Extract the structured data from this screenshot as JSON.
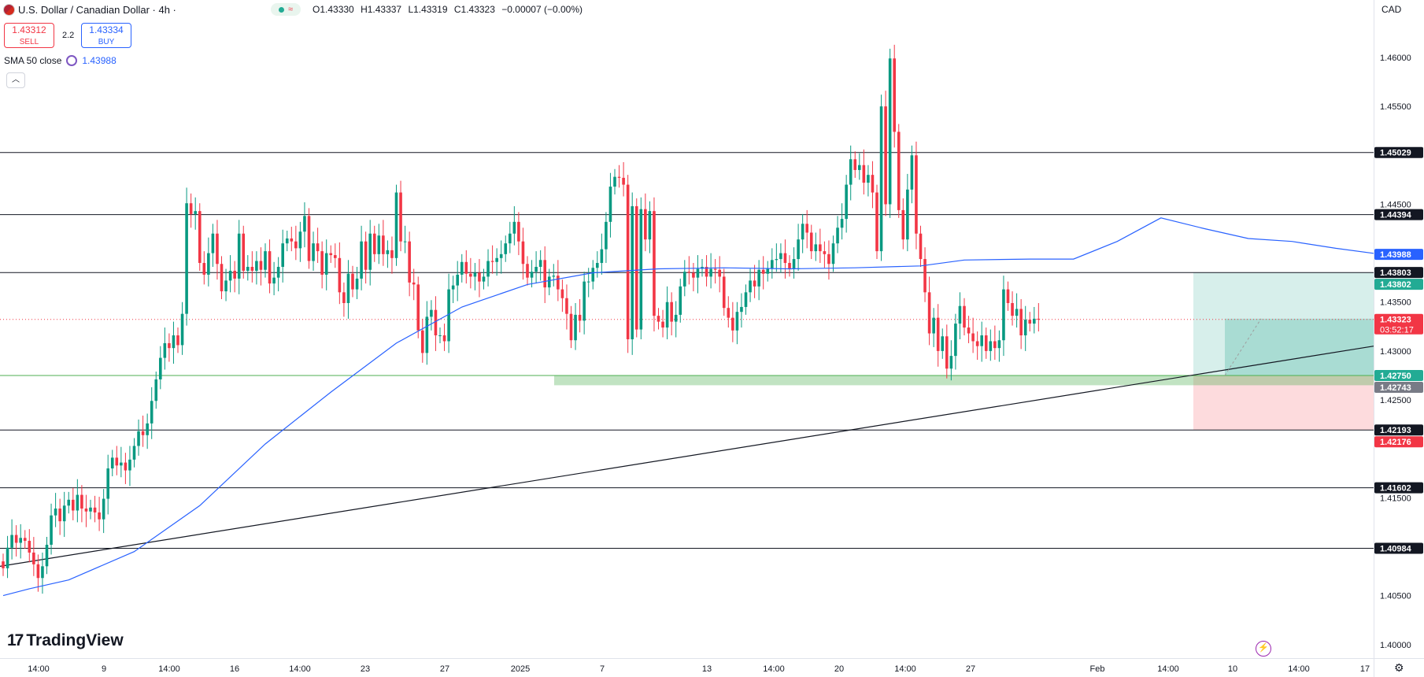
{
  "header": {
    "symbol_title": "U.S. Dollar / Canadian Dollar · 4h ·",
    "ohlc": {
      "open": "O1.43330",
      "high": "H1.43337",
      "low": "L1.43319",
      "close": "C1.43323",
      "change": "−0.00007 (−0.00%)"
    },
    "sell": {
      "price": "1.43312",
      "label": "SELL"
    },
    "buy": {
      "price": "1.43334",
      "label": "BUY"
    },
    "spread": "2.2",
    "indicator": {
      "label": "SMA 50 close",
      "value": "1.43988"
    },
    "currency": "CAD",
    "colors": {
      "up": "#089981",
      "down": "#f23645",
      "sma": "#2962ff"
    }
  },
  "branding": {
    "logo": "TradingView"
  },
  "icons": {
    "flag": "us-ca-flag-icon",
    "collapse": "chevron-up-icon",
    "bolt": "lightning-icon",
    "settings": "gear-icon"
  },
  "chart_data": {
    "type": "candlestick",
    "symbol": "USDCAD",
    "timeframe": "4h",
    "ylim": [
      1.3995,
      1.4655
    ],
    "y_ticks": [
      "1.46000",
      "1.45500",
      "1.44500",
      "1.43500",
      "1.43000",
      "1.42500",
      "1.41500",
      "1.40500",
      "1.40000"
    ],
    "x_ticks": [
      "14:00",
      "9",
      "14:00",
      "16",
      "14:00",
      "23",
      "27",
      "2025",
      "7",
      "13",
      "14:00",
      "20",
      "14:00",
      "27",
      "Feb",
      "14:00",
      "10",
      "14:00",
      "17"
    ],
    "candles": [
      [
        1.4085,
        1.4078
      ],
      [
        1.4078,
        1.4099
      ],
      [
        1.4099,
        1.4112
      ],
      [
        1.4112,
        1.4104
      ],
      [
        1.4104,
        1.4109
      ],
      [
        1.4109,
        1.4106
      ],
      [
        1.4106,
        1.4094
      ],
      [
        1.4094,
        1.4082
      ],
      [
        1.4082,
        1.4068
      ],
      [
        1.4068,
        1.408
      ],
      [
        1.408,
        1.4102
      ],
      [
        1.4102,
        1.4132
      ],
      [
        1.4132,
        1.4139
      ],
      [
        1.4139,
        1.4126
      ],
      [
        1.4126,
        1.4142
      ],
      [
        1.4142,
        1.4148
      ],
      [
        1.4148,
        1.4137
      ],
      [
        1.4137,
        1.4153
      ],
      [
        1.4153,
        1.4139
      ],
      [
        1.4139,
        1.4136
      ],
      [
        1.4136,
        1.414
      ],
      [
        1.414,
        1.4135
      ],
      [
        1.4135,
        1.4128
      ],
      [
        1.4128,
        1.4149
      ],
      [
        1.4149,
        1.418
      ],
      [
        1.418,
        1.4191
      ],
      [
        1.4191,
        1.4183
      ],
      [
        1.4183,
        1.4186
      ],
      [
        1.4186,
        1.4178
      ],
      [
        1.4178,
        1.4189
      ],
      [
        1.4189,
        1.4203
      ],
      [
        1.4203,
        1.4218
      ],
      [
        1.4218,
        1.4214
      ],
      [
        1.4214,
        1.4226
      ],
      [
        1.4226,
        1.4249
      ],
      [
        1.4249,
        1.4271
      ],
      [
        1.4271,
        1.4293
      ],
      [
        1.4293,
        1.4308
      ],
      [
        1.4308,
        1.4303
      ],
      [
        1.4303,
        1.4316
      ],
      [
        1.4316,
        1.4306
      ],
      [
        1.4306,
        1.4338
      ],
      [
        1.4338,
        1.4451
      ],
      [
        1.4451,
        1.444
      ],
      [
        1.444,
        1.4443
      ],
      [
        1.4443,
        1.439
      ],
      [
        1.439,
        1.4378
      ],
      [
        1.4378,
        1.44
      ],
      [
        1.44,
        1.442
      ],
      [
        1.442,
        1.4389
      ],
      [
        1.4389,
        1.4361
      ],
      [
        1.4361,
        1.4372
      ],
      [
        1.4372,
        1.4382
      ],
      [
        1.4382,
        1.4374
      ],
      [
        1.4374,
        1.442
      ],
      [
        1.442,
        1.4382
      ],
      [
        1.4382,
        1.4386
      ],
      [
        1.4386,
        1.4382
      ],
      [
        1.4382,
        1.4392
      ],
      [
        1.4392,
        1.4383
      ],
      [
        1.4383,
        1.4402
      ],
      [
        1.4402,
        1.4369
      ],
      [
        1.4369,
        1.4375
      ],
      [
        1.4375,
        1.4386
      ],
      [
        1.4386,
        1.441
      ],
      [
        1.441,
        1.4415
      ],
      [
        1.4415,
        1.4412
      ],
      [
        1.4412,
        1.4405
      ],
      [
        1.4405,
        1.4422
      ],
      [
        1.4422,
        1.4438
      ],
      [
        1.4438,
        1.4392
      ],
      [
        1.4392,
        1.441
      ],
      [
        1.441,
        1.4402
      ],
      [
        1.4402,
        1.4378
      ],
      [
        1.4378,
        1.44
      ],
      [
        1.44,
        1.4398
      ],
      [
        1.4398,
        1.4395
      ],
      [
        1.4395,
        1.436
      ],
      [
        1.436,
        1.4349
      ],
      [
        1.4349,
        1.4379
      ],
      [
        1.4379,
        1.4363
      ],
      [
        1.4363,
        1.4374
      ],
      [
        1.4374,
        1.4412
      ],
      [
        1.4412,
        1.4383
      ],
      [
        1.4383,
        1.442
      ],
      [
        1.442,
        1.4399
      ],
      [
        1.4399,
        1.4418
      ],
      [
        1.4418,
        1.4399
      ],
      [
        1.4399,
        1.4403
      ],
      [
        1.4403,
        1.4395
      ],
      [
        1.4395,
        1.4462
      ],
      [
        1.4462,
        1.4412
      ],
      [
        1.4412,
        1.4412
      ],
      [
        1.4412,
        1.437
      ],
      [
        1.437,
        1.4368
      ],
      [
        1.4368,
        1.4321
      ],
      [
        1.4321,
        1.4298
      ],
      [
        1.4298,
        1.4335
      ],
      [
        1.4335,
        1.4342
      ],
      [
        1.4342,
        1.4316
      ],
      [
        1.4316,
        1.4316
      ],
      [
        1.4316,
        1.431
      ],
      [
        1.431,
        1.4363
      ],
      [
        1.4363,
        1.4367
      ],
      [
        1.4367,
        1.4378
      ],
      [
        1.4378,
        1.4391
      ],
      [
        1.4391,
        1.4379
      ],
      [
        1.4379,
        1.4376
      ],
      [
        1.4376,
        1.438
      ],
      [
        1.438,
        1.4371
      ],
      [
        1.4371,
        1.4376
      ],
      [
        1.4376,
        1.4392
      ],
      [
        1.4392,
        1.4391
      ],
      [
        1.4391,
        1.4395
      ],
      [
        1.4395,
        1.4399
      ],
      [
        1.4399,
        1.441
      ],
      [
        1.441,
        1.442
      ],
      [
        1.442,
        1.4432
      ],
      [
        1.4432,
        1.4412
      ],
      [
        1.4412,
        1.4389
      ],
      [
        1.4389,
        1.4375
      ],
      [
        1.4375,
        1.4381
      ],
      [
        1.4381,
        1.4386
      ],
      [
        1.4386,
        1.4393
      ],
      [
        1.4393,
        1.4365
      ],
      [
        1.4365,
        1.4376
      ],
      [
        1.4376,
        1.4377
      ],
      [
        1.4377,
        1.4363
      ],
      [
        1.4363,
        1.4354
      ],
      [
        1.4354,
        1.4338
      ],
      [
        1.4338,
        1.4311
      ],
      [
        1.4311,
        1.4337
      ],
      [
        1.4337,
        1.4331
      ],
      [
        1.4331,
        1.4371
      ],
      [
        1.4371,
        1.4371
      ],
      [
        1.4371,
        1.4385
      ],
      [
        1.4385,
        1.439
      ],
      [
        1.439,
        1.4404
      ],
      [
        1.4404,
        1.4432
      ],
      [
        1.4432,
        1.4468
      ],
      [
        1.4468,
        1.4478
      ],
      [
        1.4478,
        1.4477
      ],
      [
        1.4477,
        1.447
      ],
      [
        1.447,
        1.4312
      ],
      [
        1.4312,
        1.4448
      ],
      [
        1.4448,
        1.4322
      ],
      [
        1.4322,
        1.4445
      ],
      [
        1.4445,
        1.4414
      ],
      [
        1.4414,
        1.4443
      ],
      [
        1.4443,
        1.4336
      ],
      [
        1.4336,
        1.433
      ],
      [
        1.433,
        1.4324
      ],
      [
        1.4324,
        1.435
      ],
      [
        1.435,
        1.433
      ],
      [
        1.433,
        1.4337
      ],
      [
        1.4337,
        1.4366
      ],
      [
        1.4366,
        1.4381
      ],
      [
        1.4381,
        1.438
      ],
      [
        1.438,
        1.4375
      ],
      [
        1.4375,
        1.4384
      ],
      [
        1.4384,
        1.4386
      ],
      [
        1.4386,
        1.4376
      ],
      [
        1.4376,
        1.4384
      ],
      [
        1.4384,
        1.4383
      ],
      [
        1.4383,
        1.4376
      ],
      [
        1.4376,
        1.4344
      ],
      [
        1.4344,
        1.4334
      ],
      [
        1.4334,
        1.4321
      ],
      [
        1.4321,
        1.434
      ],
      [
        1.434,
        1.4345
      ],
      [
        1.4345,
        1.436
      ],
      [
        1.436,
        1.4372
      ],
      [
        1.4372,
        1.4366
      ],
      [
        1.4366,
        1.4383
      ],
      [
        1.4383,
        1.4379
      ],
      [
        1.4379,
        1.4384
      ],
      [
        1.4384,
        1.4393
      ],
      [
        1.4393,
        1.4394
      ],
      [
        1.4394,
        1.44
      ],
      [
        1.44,
        1.439
      ],
      [
        1.439,
        1.4384
      ],
      [
        1.4384,
        1.4394
      ],
      [
        1.4394,
        1.4414
      ],
      [
        1.4414,
        1.443
      ],
      [
        1.443,
        1.4421
      ],
      [
        1.4421,
        1.4402
      ],
      [
        1.4402,
        1.4409
      ],
      [
        1.4409,
        1.4402
      ],
      [
        1.4402,
        1.4399
      ],
      [
        1.4399,
        1.4389
      ],
      [
        1.4389,
        1.441
      ],
      [
        1.441,
        1.4426
      ],
      [
        1.4426,
        1.4435
      ],
      [
        1.4435,
        1.447
      ],
      [
        1.447,
        1.4496
      ],
      [
        1.4496,
        1.4485
      ],
      [
        1.4485,
        1.449
      ],
      [
        1.449,
        1.4472
      ],
      [
        1.4472,
        1.448
      ],
      [
        1.448,
        1.4462
      ],
      [
        1.4462,
        1.4402
      ],
      [
        1.4402,
        1.455
      ],
      [
        1.455,
        1.445
      ],
      [
        1.445,
        1.4599
      ],
      [
        1.4599,
        1.4524
      ],
      [
        1.4524,
        1.4444
      ],
      [
        1.4444,
        1.4414
      ],
      [
        1.4414,
        1.4465
      ],
      [
        1.4465,
        1.45
      ],
      [
        1.45,
        1.442
      ],
      [
        1.442,
        1.4394
      ],
      [
        1.4394,
        1.436
      ],
      [
        1.436,
        1.4318
      ],
      [
        1.4318,
        1.4334
      ],
      [
        1.4334,
        1.43
      ],
      [
        1.43,
        1.4315
      ],
      [
        1.4315,
        1.4282
      ],
      [
        1.4282,
        1.4295
      ],
      [
        1.4295,
        1.4328
      ],
      [
        1.4328,
        1.4346
      ],
      [
        1.4346,
        1.4324
      ],
      [
        1.4324,
        1.4318
      ],
      [
        1.4318,
        1.431
      ],
      [
        1.431,
        1.4305
      ],
      [
        1.4305,
        1.4316
      ],
      [
        1.4316,
        1.43
      ],
      [
        1.43,
        1.431
      ],
      [
        1.431,
        1.4303
      ],
      [
        1.4303,
        1.4311
      ],
      [
        1.4311,
        1.4363
      ],
      [
        1.4363,
        1.4349
      ],
      [
        1.4349,
        1.4336
      ],
      [
        1.4336,
        1.4343
      ],
      [
        1.4343,
        1.4316
      ],
      [
        1.4316,
        1.4332
      ],
      [
        1.4332,
        1.4328
      ],
      [
        1.4328,
        1.4333
      ],
      [
        1.4333,
        1.4332
      ]
    ],
    "sma50": [
      [
        0,
        1.405
      ],
      [
        6,
        1.4057
      ],
      [
        15,
        1.4066
      ],
      [
        30,
        1.4095
      ],
      [
        45,
        1.4142
      ],
      [
        60,
        1.4205
      ],
      [
        75,
        1.4258
      ],
      [
        90,
        1.4308
      ],
      [
        105,
        1.4345
      ],
      [
        120,
        1.4368
      ],
      [
        135,
        1.438
      ],
      [
        150,
        1.4384
      ],
      [
        165,
        1.4385
      ],
      [
        180,
        1.4384
      ],
      [
        195,
        1.4385
      ],
      [
        210,
        1.4387
      ],
      [
        220,
        1.4393
      ],
      [
        235,
        1.4394
      ],
      [
        245,
        1.4394
      ],
      [
        255,
        1.4412
      ],
      [
        265,
        1.4436
      ],
      [
        275,
        1.4425
      ],
      [
        285,
        1.4415
      ],
      [
        295,
        1.4412
      ],
      [
        305,
        1.4405
      ],
      [
        315,
        1.4399
      ]
    ],
    "levels": [
      "1.45029",
      "1.44394",
      "1.43802",
      "1.42193",
      "1.41602",
      "1.40984"
    ],
    "support_zone": {
      "high": 1.4275,
      "low": 1.4265,
      "label": "1.42750"
    },
    "trendline": {
      "start": 1.408,
      "end": 1.4305
    },
    "trade": {
      "entry": 1.4275,
      "stop": 1.4219,
      "target": 1.438
    },
    "price_labels": [
      {
        "value": 1.45029,
        "text": "1.45029",
        "color": "#131722"
      },
      {
        "value": 1.44394,
        "text": "1.44394",
        "color": "#131722"
      },
      {
        "value": 1.43988,
        "text": "1.43988",
        "color": "#2962ff"
      },
      {
        "value": 1.43803,
        "text": "1.43803",
        "color": "#131722"
      },
      {
        "value": 1.43802,
        "text": "1.43802",
        "color": "#22ab94"
      },
      {
        "value": 1.43323,
        "text": "1.43323",
        "color": "#f23645",
        "sub": "03:52:17"
      },
      {
        "value": 1.4275,
        "text": "1.42750",
        "color": "#22ab94"
      },
      {
        "value": 1.42743,
        "text": "1.42743",
        "color": "#787b86"
      },
      {
        "value": 1.42193,
        "text": "1.42193",
        "color": "#131722"
      },
      {
        "value": 1.42176,
        "text": "1.42176",
        "color": "#f23645"
      },
      {
        "value": 1.41602,
        "text": "1.41602",
        "color": "#131722"
      },
      {
        "value": 1.40984,
        "text": "1.40984",
        "color": "#131722"
      }
    ]
  }
}
